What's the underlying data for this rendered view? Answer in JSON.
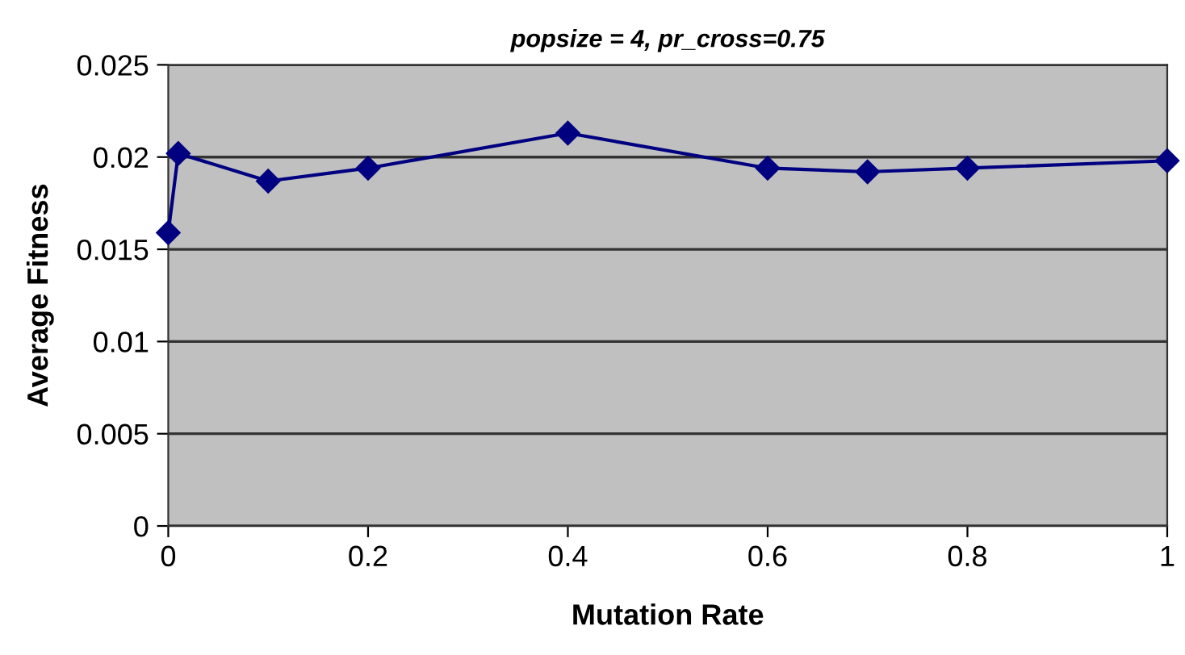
{
  "chart_data": {
    "type": "line",
    "title": "popsize = 4, pr_cross=0.75",
    "xlabel": "Mutation Rate",
    "ylabel": "Average Fitness",
    "x": [
      0,
      0.01,
      0.1,
      0.2,
      0.4,
      0.6,
      0.7,
      0.8,
      1.0
    ],
    "series": [
      {
        "color": "#000080",
        "values": [
          0.0159,
          0.0202,
          0.0187,
          0.0194,
          0.0213,
          0.0194,
          0.0192,
          0.0194,
          0.0198
        ]
      }
    ],
    "xlim": [
      0,
      1
    ],
    "xticks": [
      0,
      0.2,
      0.4,
      0.6,
      0.8,
      1
    ],
    "ylim": [
      0,
      0.025
    ],
    "yticks": [
      0,
      0.005,
      0.01,
      0.015,
      0.02,
      0.025
    ],
    "grid": "y",
    "marker": "diamond",
    "line_style": "solid",
    "legend": false
  }
}
